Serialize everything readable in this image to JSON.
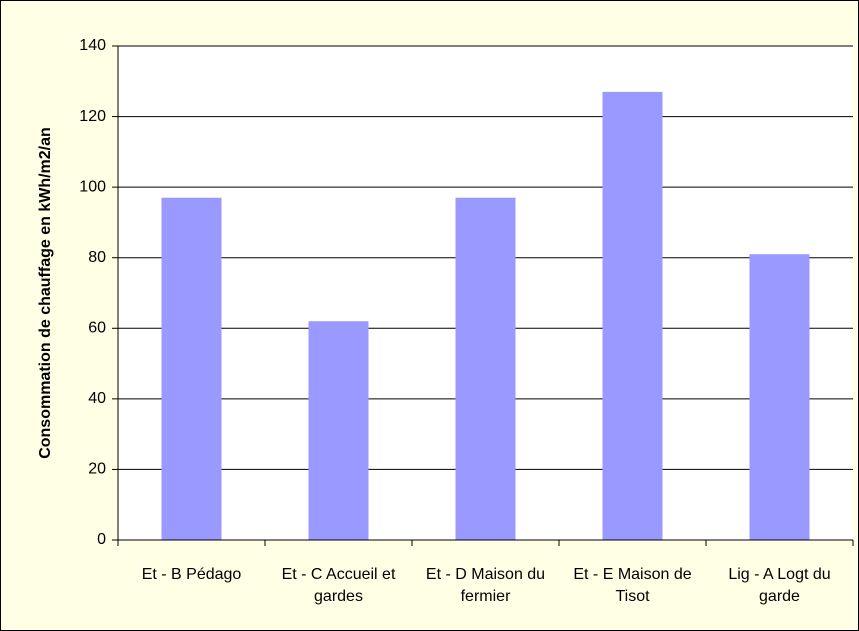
{
  "chart_data": {
    "type": "bar",
    "y_label": "Consommation de chauffage en kWh/m2/an",
    "categories": [
      "Et - B Pédago",
      "Et - C Accueil et gardes",
      "Et - D Maison du fermier",
      "Et - E Maison de Tisot",
      "Lig - A Logt du garde"
    ],
    "values": [
      97,
      62,
      97,
      127,
      81
    ],
    "color": "#9999ff",
    "ylim": [
      0,
      140
    ],
    "yticks": [
      0,
      20,
      40,
      60,
      80,
      100,
      120,
      140
    ],
    "grid": true
  }
}
